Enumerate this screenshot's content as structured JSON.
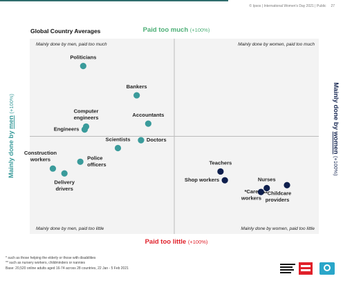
{
  "header": {
    "source_line": "© Ipsos | International Women's Day 2021 | Public",
    "page_number": "27"
  },
  "chart_data": {
    "type": "scatter",
    "title": "Global Country Averages",
    "y_axis": {
      "top_label": "Paid too much",
      "top_suffix": "(+100%)",
      "bottom_label": "Paid too little",
      "bottom_suffix": "(+100%)",
      "range": [
        -100,
        100
      ]
    },
    "x_axis": {
      "left_label_prefix": "Mainly done by ",
      "left_label_key": "men",
      "left_suffix": "(+100%)",
      "right_label_prefix": "Mainly done by ",
      "right_label_key": "women",
      "right_suffix": "(+100%)",
      "range": [
        -100,
        100
      ]
    },
    "quadrants": {
      "top_left": "Mainly done by men, paid too much",
      "top_right": "Mainly done by women, paid too much",
      "bottom_left": "Mainly done by men, paid too little",
      "bottom_right": "Mainly done by women, paid too little"
    },
    "colors": {
      "men": "#3a9b9b",
      "women": "#0e1f4d",
      "paid_too_much": "#4caf76",
      "paid_too_little": "#e0202a"
    },
    "points": [
      {
        "label": [
          "Politicians"
        ],
        "x": -63,
        "y": 72,
        "group": "men"
      },
      {
        "label": [
          "Bankers"
        ],
        "x": -26,
        "y": 42,
        "group": "men"
      },
      {
        "label": [
          "Accountants"
        ],
        "x": -18,
        "y": 13,
        "group": "men"
      },
      {
        "label": [
          "Computer",
          "engineers"
        ],
        "x": -61,
        "y": 10,
        "group": "men"
      },
      {
        "label": [
          "Engineers"
        ],
        "x": -62,
        "y": 7,
        "group": "men"
      },
      {
        "label": [
          "Doctors"
        ],
        "x": -23,
        "y": -4,
        "group": "men"
      },
      {
        "label": [
          "Scientists"
        ],
        "x": -39,
        "y": -12,
        "group": "men"
      },
      {
        "label": [
          "Police",
          "officers"
        ],
        "x": -65,
        "y": -26,
        "group": "men"
      },
      {
        "label": [
          "Construction",
          "workers"
        ],
        "x": -84,
        "y": -33,
        "group": "men"
      },
      {
        "label": [
          "Delivery",
          "drivers"
        ],
        "x": -76,
        "y": -38,
        "group": "men"
      },
      {
        "label": [
          "Teachers"
        ],
        "x": 32,
        "y": -36,
        "group": "women"
      },
      {
        "label": [
          "Shop workers"
        ],
        "x": 35,
        "y": -45,
        "group": "women"
      },
      {
        "label": [
          "Nurses"
        ],
        "x": 64,
        "y": -53,
        "group": "women"
      },
      {
        "label": [
          "*Care",
          "workers"
        ],
        "x": 60,
        "y": -57,
        "group": "women"
      },
      {
        "label": [
          "**Childcare",
          "providers"
        ],
        "x": 78,
        "y": -50,
        "group": "women"
      }
    ]
  },
  "footnotes": [
    "* such as those helping the elderly or those with disabilities",
    "** such as nursery workers, childminders or nannies",
    "Base: 20,520 online adults aged 16-74 across 28 countries,  22 Jan - 5 Feb 2021"
  ]
}
